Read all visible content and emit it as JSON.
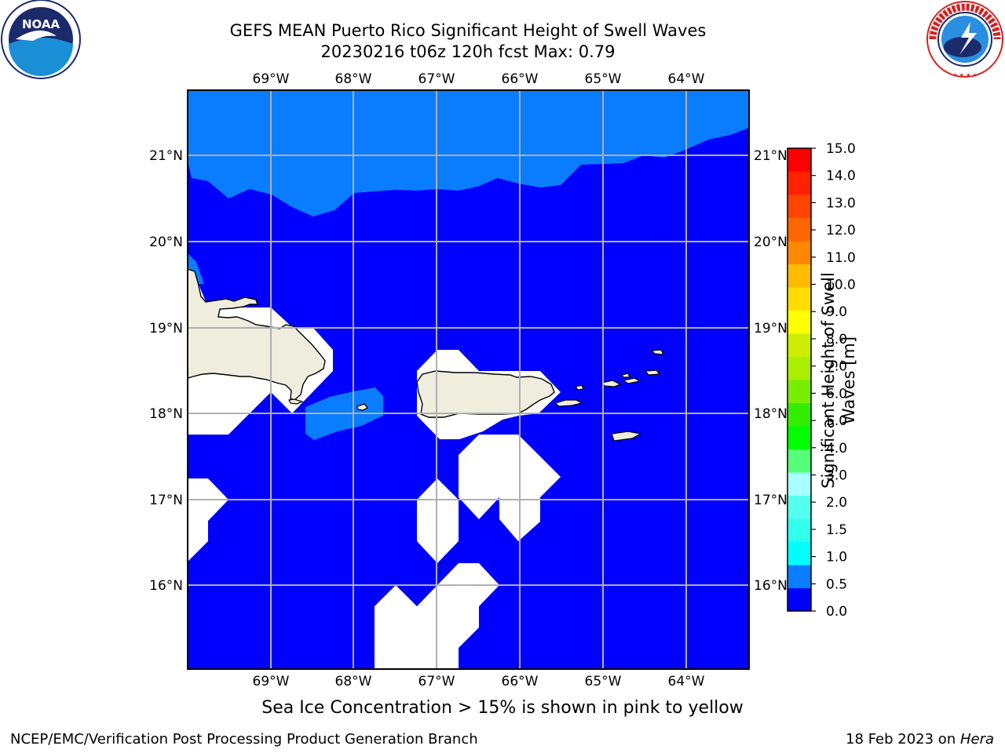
{
  "header": {
    "title_line1": "GEFS MEAN Puerto Rico Significant Height of Swell Waves",
    "title_line2": "20230216 t06z 120h fcst   Max: 0.79"
  },
  "map": {
    "top_lon_labels": [
      "69°W",
      "68°W",
      "67°W",
      "66°W",
      "65°W",
      "64°W"
    ],
    "bottom_lon_labels": [
      "69°W",
      "68°W",
      "67°W",
      "66°W",
      "65°W",
      "64°W"
    ],
    "left_lat_labels": [
      "21°N",
      "20°N",
      "19°N",
      "18°N",
      "17°N",
      "16°N"
    ],
    "right_lat_labels": [
      "21°N",
      "20°N",
      "19°N",
      "18°N",
      "17°N",
      "16°N"
    ],
    "colors": {
      "swell_0_0p5": "#0000ff",
      "swell_0p5_1p0": "#0a7dff",
      "land": "#eeedde",
      "no_data": "#ffffff",
      "grid": "#b0b0b0"
    }
  },
  "colorbar": {
    "label": "Significant Height of Swell Waves [m]",
    "ticks": [
      "15.0",
      "14.0",
      "13.0",
      "12.0",
      "11.0",
      "10.0",
      "9.0",
      "8.0",
      "7.0",
      "6.0",
      "5.0",
      "4.0",
      "3.0",
      "2.0",
      "1.5",
      "1.0",
      "0.5",
      "0.0"
    ],
    "colors_bottom_to_top": [
      "#0000ff",
      "#0a7dff",
      "#00ffff",
      "#33ffee",
      "#55ffee",
      "#a8ffff",
      "#55ff77",
      "#00ff00",
      "#33ee00",
      "#77ee00",
      "#aaee00",
      "#ccee00",
      "#ffff00",
      "#ffdd00",
      "#ffbb00",
      "#ff8800",
      "#ff6600",
      "#ff4400",
      "#ff2200",
      "#ff0000"
    ]
  },
  "subcaption": "Sea Ice Concentration > 15% is shown in pink to yellow",
  "footer": {
    "left": "NCEP/EMC/Verification Post Processing Product Generation Branch",
    "right_prefix": "18 Feb 2023 on ",
    "right_host": "Hera"
  },
  "logos": {
    "noaa_text": "NOAA",
    "nws_text": "NATIONAL WEATHER SERVICE"
  }
}
